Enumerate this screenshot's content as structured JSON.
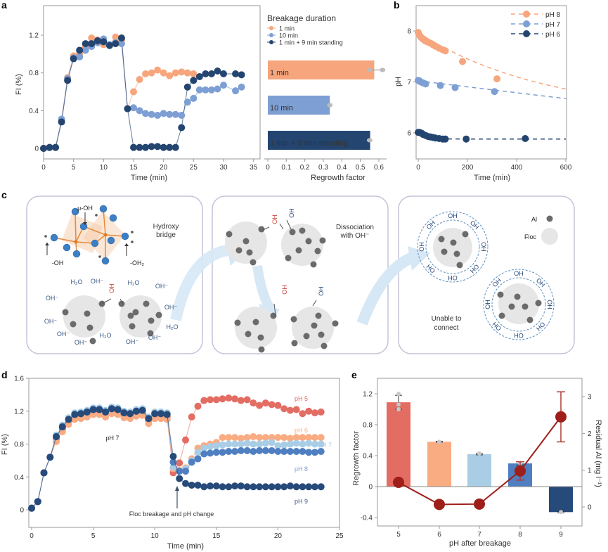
{
  "colors": {
    "orange": "#f7a57c",
    "lightblue": "#7e9fd3",
    "navy": "#234570",
    "red5": "#e36c63",
    "orange6": "#f9ab82",
    "pale7": "#a9cde5",
    "blue8": "#4f7fc1",
    "navy9": "#264a7a",
    "darkred": "#9e1f1a",
    "arrow": "#d6e8f5",
    "panelborder": "#c5c3d8"
  },
  "panel_labels": {
    "a": "a",
    "b": "b",
    "c": "c",
    "d": "d",
    "e": "e"
  },
  "chart_data": [
    {
      "id": "a-line",
      "type": "line",
      "title": "",
      "xlabel": "Time (min)",
      "ylabel": "FI (%)",
      "xlim": [
        0,
        35
      ],
      "ylim": [
        -0.1,
        1.45
      ],
      "xticks": [
        0,
        5,
        10,
        15,
        20,
        25,
        30,
        35
      ],
      "xtick_labels": [
        "0",
        "5",
        "10",
        "15",
        "20",
        "25",
        "30",
        "35"
      ],
      "yticks": [
        0,
        0.4,
        0.8,
        1.2
      ],
      "ytick_labels": [
        "0",
        "0.4",
        "0.8",
        "1.2"
      ],
      "legend_title": "Breakage duration",
      "legend_position": "top-right",
      "series": [
        {
          "name": "1 min",
          "color_key": "orange",
          "x": [
            0,
            1,
            2,
            3,
            4,
            5,
            6,
            7,
            8,
            9,
            10,
            11,
            12,
            13,
            14,
            15,
            16,
            17,
            18,
            19,
            20,
            21,
            22,
            23,
            24,
            25
          ],
          "y": [
            0,
            0.01,
            0.01,
            0.3,
            0.75,
            0.98,
            1.0,
            1.08,
            1.17,
            1.15,
            1.1,
            1.1,
            1.18,
            1.15,
            0.42,
            0.6,
            0.73,
            0.79,
            0.8,
            0.83,
            0.8,
            0.77,
            0.8,
            0.81,
            0.8,
            0.79
          ]
        },
        {
          "name": "10 min",
          "color_key": "lightblue",
          "x": [
            0,
            1,
            2,
            3,
            4,
            5,
            6,
            7,
            8,
            9,
            10,
            11,
            12,
            13,
            14,
            15,
            16,
            17,
            18,
            19,
            20,
            21,
            22,
            23,
            24,
            25,
            26,
            27,
            28,
            29,
            30,
            32,
            33
          ],
          "y": [
            0,
            0.01,
            0.01,
            0.31,
            0.74,
            0.96,
            0.97,
            1.04,
            1.08,
            1.12,
            1.16,
            1.1,
            1.12,
            1.11,
            0.42,
            0.43,
            0.4,
            0.37,
            0.36,
            0.35,
            0.37,
            0.36,
            0.36,
            0.35,
            0.49,
            0.53,
            0.62,
            0.62,
            0.62,
            0.63,
            0.67,
            0.61,
            0.65
          ]
        },
        {
          "name": "1 min + 9 min standing",
          "color_key": "navy",
          "x": [
            0,
            1,
            2,
            3,
            4,
            5,
            6,
            7,
            8,
            9,
            10,
            11,
            12,
            13,
            14,
            15,
            16,
            17,
            18,
            19,
            20,
            21,
            22,
            23,
            24,
            25,
            26,
            27,
            28,
            29,
            30,
            32,
            33
          ],
          "y": [
            0,
            0.01,
            0.01,
            0.28,
            0.72,
            0.95,
            1.04,
            1.11,
            1.11,
            1.14,
            1.13,
            1.09,
            1.11,
            1.17,
            0.42,
            0.01,
            0.01,
            0.01,
            0.02,
            0.02,
            0.01,
            0.01,
            0.01,
            0.22,
            0.65,
            0.72,
            0.76,
            0.79,
            0.79,
            0.82,
            0.79,
            0.79,
            0.78
          ]
        }
      ]
    },
    {
      "id": "a-bar",
      "type": "bar",
      "orientation": "horizontal",
      "xlabel": "Regrowth factor",
      "xlim": [
        0,
        0.65
      ],
      "xticks": [
        0,
        0.1,
        0.2,
        0.3,
        0.4,
        0.5,
        0.6
      ],
      "xtick_labels": [
        "0",
        "0.1",
        "0.2",
        "0.3",
        "0.4",
        "0.5",
        "0.6"
      ],
      "categories": [
        "1 min",
        "10 min",
        "1 min + 9 min standing"
      ],
      "values": [
        0.575,
        0.335,
        0.553
      ],
      "error": [
        0.04,
        0.005,
        0.005
      ],
      "replicates": [
        [
          0.55,
          0.62
        ],
        [
          0.335
        ],
        [
          0.55
        ]
      ],
      "color_keys": [
        "orange",
        "lightblue",
        "navy"
      ]
    },
    {
      "id": "b",
      "type": "line",
      "xlabel": "Time (min)",
      "ylabel": "pH",
      "xlim": [
        -10,
        600
      ],
      "ylim": [
        5.5,
        8.35
      ],
      "xticks": [
        0,
        200,
        400,
        600
      ],
      "xtick_labels": [
        "0",
        "200",
        "400",
        "600"
      ],
      "yticks": [
        6,
        7,
        8
      ],
      "ytick_labels": [
        "6",
        "7",
        "8"
      ],
      "legend_position": "top-right",
      "series": [
        {
          "name": "pH 8",
          "color_key": "orange",
          "x": [
            0,
            5,
            10,
            15,
            20,
            25,
            30,
            40,
            50,
            60,
            70,
            85,
            100,
            110,
            180,
            320
          ],
          "y": [
            7.97,
            7.92,
            7.88,
            7.86,
            7.84,
            7.82,
            7.8,
            7.78,
            7.76,
            7.73,
            7.7,
            7.66,
            7.63,
            7.61,
            7.4,
            7.06
          ],
          "fit_x": [
            0,
            600
          ],
          "fit": "decay"
        },
        {
          "name": "pH 7",
          "color_key": "lightblue",
          "x": [
            0,
            5,
            10,
            20,
            30,
            90,
            150,
            310
          ],
          "y": [
            7.03,
            7.02,
            7.0,
            6.98,
            6.96,
            6.93,
            6.89,
            6.81
          ],
          "fit_x": [
            0,
            600
          ],
          "fit": "linear"
        },
        {
          "name": "pH 6",
          "color_key": "navy",
          "x": [
            0,
            5,
            10,
            15,
            20,
            30,
            40,
            50,
            60,
            70,
            85,
            100,
            110,
            195,
            435
          ],
          "y": [
            6.01,
            6.01,
            6.0,
            5.99,
            5.97,
            5.95,
            5.93,
            5.92,
            5.91,
            5.9,
            5.89,
            5.88,
            5.88,
            5.88,
            5.89
          ],
          "fit_x": [
            0,
            600
          ],
          "fit": "flat"
        }
      ]
    },
    {
      "id": "d",
      "type": "line",
      "xlabel": "Time (min)",
      "ylabel": "FI (%)",
      "xlim": [
        -0.3,
        25
      ],
      "ylim": [
        -0.18,
        1.6
      ],
      "xticks": [
        0,
        5,
        10,
        15,
        20,
        25
      ],
      "xtick_labels": [
        "0",
        "5",
        "10",
        "15",
        "20",
        "25"
      ],
      "yticks": [
        0,
        0.4,
        0.8,
        1.2,
        1.6
      ],
      "ytick_labels": [
        "0",
        "0.4",
        "0.8",
        "1.2",
        "1.6"
      ],
      "annotations": [
        "pH 7",
        "Floc breakage and pH change"
      ],
      "series_labels": [
        "pH 5",
        "pH 6",
        "pH 7",
        "pH 8",
        "pH 9"
      ],
      "series": [
        {
          "name": "pH 5",
          "color_key": "red5",
          "y_after": [
            0.45,
            0.57,
            0.85,
            1.13,
            1.26,
            1.33,
            1.34,
            1.34,
            1.35,
            1.36,
            1.35,
            1.33,
            1.34,
            1.3,
            1.27,
            1.3,
            1.28,
            1.27,
            1.23,
            1.21,
            1.22,
            1.17,
            1.2,
            1.18,
            1.19
          ]
        },
        {
          "name": "pH 6",
          "color_key": "orange6",
          "y_after": [
            0.5,
            0.48,
            0.51,
            0.62,
            0.75,
            0.78,
            0.8,
            0.82,
            0.88,
            0.88,
            0.88,
            0.87,
            0.88,
            0.89,
            0.88,
            0.88,
            0.88,
            0.88,
            0.88,
            0.87,
            0.88,
            0.88,
            0.88,
            0.88,
            0.88
          ]
        },
        {
          "name": "pH 7",
          "color_key": "pale7",
          "y_after": [
            0.52,
            0.47,
            0.5,
            0.6,
            0.7,
            0.75,
            0.77,
            0.78,
            0.79,
            0.8,
            0.8,
            0.8,
            0.81,
            0.8,
            0.8,
            0.81,
            0.82,
            0.78,
            0.79,
            0.8,
            0.81,
            0.8,
            0.81,
            0.8,
            0.8
          ]
        },
        {
          "name": "pH 8",
          "color_key": "blue8",
          "y_after": [
            0.58,
            0.47,
            0.47,
            0.58,
            0.62,
            0.68,
            0.69,
            0.7,
            0.7,
            0.71,
            0.71,
            0.72,
            0.72,
            0.71,
            0.72,
            0.72,
            0.72,
            0.71,
            0.71,
            0.71,
            0.71,
            0.71,
            0.7,
            0.7,
            0.71
          ]
        },
        {
          "name": "pH 9",
          "color_key": "navy9",
          "y_after": [
            0.65,
            0.38,
            0.32,
            0.3,
            0.3,
            0.28,
            0.29,
            0.29,
            0.28,
            0.28,
            0.29,
            0.29,
            0.28,
            0.28,
            0.28,
            0.28,
            0.28,
            0.28,
            0.28,
            0.29,
            0.28,
            0.28,
            0.28,
            0.28,
            0.28
          ]
        }
      ],
      "pre_x_step": 0.5,
      "pre_y": [
        0.02,
        0.1,
        0.45,
        0.64,
        0.89,
        1.01,
        1.1,
        1.16,
        1.17,
        1.19,
        1.22,
        1.22,
        1.19,
        1.23,
        1.22,
        1.18,
        1.17,
        1.2,
        1.21,
        1.11,
        1.17,
        1.17,
        1.16
      ],
      "after_x_start": 11.5,
      "after_x_step": 0.5
    },
    {
      "id": "e",
      "type": "bar",
      "xlabel": "pH after breakage",
      "ylabel": "Regrowth factor",
      "ylabel_right": "Residual Al (mg l⁻¹)",
      "categories": [
        "5",
        "6",
        "7",
        "8",
        "9"
      ],
      "ylim": [
        -0.5,
        1.4
      ],
      "yticks": [
        -0.4,
        0,
        0.4,
        0.8,
        1.2
      ],
      "ytick_labels": [
        "-0.4",
        "0",
        "0.4",
        "0.8",
        "1.2"
      ],
      "ylim_right": [
        -0.5,
        3.5
      ],
      "yticks_right": [
        0,
        1,
        2,
        3
      ],
      "ytick_labels_right": [
        "0",
        "1",
        "2",
        "3"
      ],
      "values": [
        1.09,
        0.58,
        0.42,
        0.3,
        -0.33
      ],
      "error": [
        0.09,
        0.005,
        0.01,
        0.02,
        0.01
      ],
      "replicates": [
        [
          1.2,
          1.06,
          1.0
        ],
        [
          0.58
        ],
        [
          0.43
        ],
        [
          0.3
        ],
        [
          -0.33
        ]
      ],
      "color_keys": [
        "red5",
        "orange6",
        "pale7",
        "blue8",
        "navy9"
      ],
      "residual_al": [
        0.67,
        0.07,
        0.08,
        0.98,
        2.45
      ],
      "residual_al_error": [
        0,
        0,
        0,
        0.25,
        0.68
      ]
    }
  ],
  "schematic": {
    "panel1": {
      "title_line1": "Hydroxy",
      "title_line2": "bridge",
      "mu_oh": "μ-OH",
      "oh": "-OH",
      "oh2": "-OH₂",
      "ions": [
        "H₂O",
        "OH⁻",
        "OH",
        "H₂O",
        "OH⁻",
        "OH⁻",
        "OH⁻",
        "OH⁻",
        "OH⁻",
        "OH⁻",
        "H₂O",
        "OH⁻",
        "OH⁻",
        "H₂O",
        "OH⁻"
      ]
    },
    "panel2": {
      "title_line1": "Dissociation",
      "title_line2": "with OH⁻",
      "oh": "OH"
    },
    "panel3": {
      "legend_al": "Al",
      "legend_floc": "Floc",
      "caption_line1": "Unable to",
      "caption_line2": "connect",
      "oh": "OH"
    }
  }
}
